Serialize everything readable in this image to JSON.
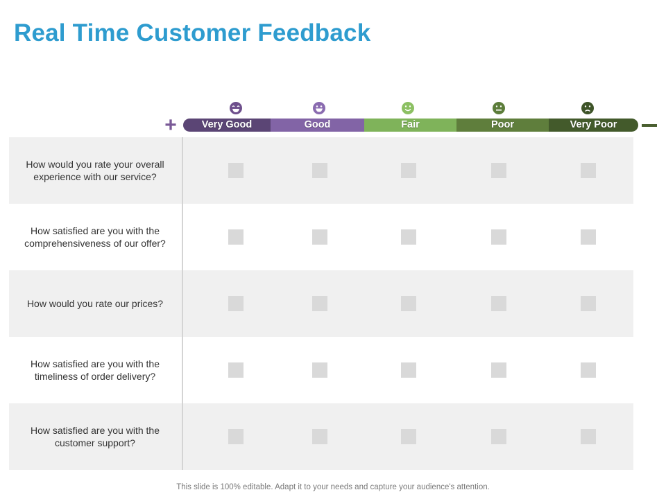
{
  "title": "Real Time Customer Feedback",
  "scale": {
    "plus_symbol": "+",
    "levels": [
      {
        "label": "Very Good",
        "color": "#5b4575",
        "face_color": "#6e4f8c",
        "face": "laughing-face-icon"
      },
      {
        "label": "Good",
        "color": "#8264a6",
        "face_color": "#8a6bb0",
        "face": "grinning-face-icon"
      },
      {
        "label": "Fair",
        "color": "#7fb35a",
        "face_color": "#8cc063",
        "face": "smiling-face-icon"
      },
      {
        "label": "Poor",
        "color": "#5f7e3c",
        "face_color": "#5c7d3a",
        "face": "neutral-face-icon"
      },
      {
        "label": "Very Poor",
        "color": "#435a2b",
        "face_color": "#3e5428",
        "face": "frowning-face-icon"
      }
    ]
  },
  "questions": [
    "How would you rate your overall experience with our service?",
    "How satisfied are you with the comprehensiveness of our offer?",
    "How would you rate our prices?",
    "How satisfied are you with the timeliness of order delivery?",
    "How satisfied are you with the customer support?"
  ],
  "footer": "This slide is 100% editable. Adapt it to your needs and capture your audience's attention."
}
